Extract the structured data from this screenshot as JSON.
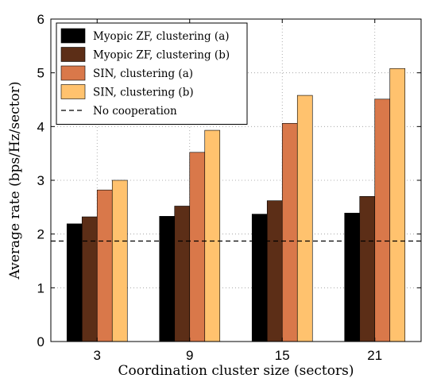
{
  "chart_data": {
    "type": "bar",
    "xlabel": "Coordination cluster size (sectors)",
    "ylabel": "Average rate (bps/Hz/sector)",
    "categories": [
      "3",
      "9",
      "15",
      "21"
    ],
    "ylim": [
      0,
      6
    ],
    "yticks": [
      "0",
      "1",
      "2",
      "3",
      "4",
      "5",
      "6"
    ],
    "grid": true,
    "legend_position": "top-left",
    "series": [
      {
        "name": "Myopic ZF, clustering (a)",
        "color": "#000000",
        "values": [
          2.19,
          2.33,
          2.37,
          2.39
        ]
      },
      {
        "name": "Myopic ZF, clustering (b)",
        "color": "#5c2e17",
        "values": [
          2.32,
          2.52,
          2.62,
          2.7
        ]
      },
      {
        "name": "SIN, clustering (a)",
        "color": "#d9784a",
        "values": [
          2.82,
          3.52,
          4.06,
          4.51
        ]
      },
      {
        "name": "SIN, clustering (b)",
        "color": "#ffc26e",
        "values": [
          3.0,
          3.93,
          4.58,
          5.08
        ]
      }
    ],
    "reference_line": {
      "name": "No cooperation",
      "value": 1.87,
      "style": "dashed"
    }
  }
}
